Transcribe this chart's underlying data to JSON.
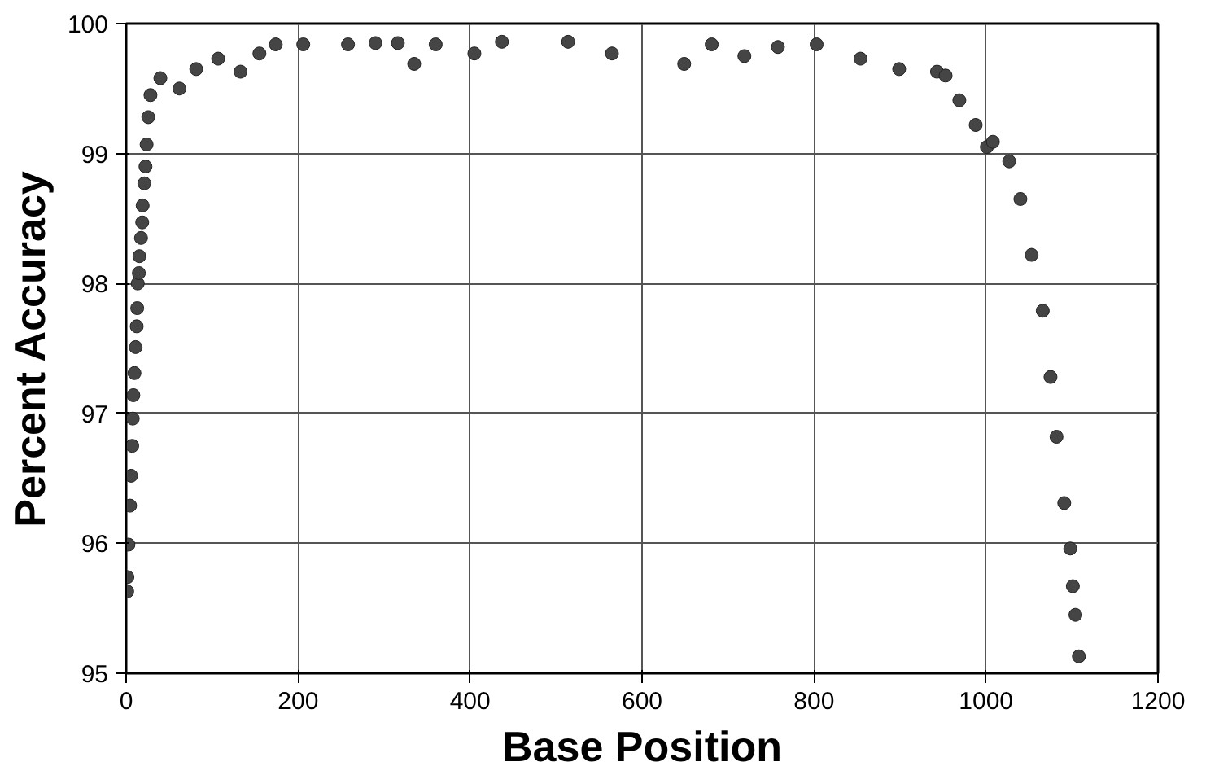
{
  "chart_data": {
    "type": "scatter",
    "xlabel": "Base Position",
    "ylabel": "Percent Accuracy",
    "marker": "circle",
    "grid": true,
    "xlim": [
      0,
      1200
    ],
    "xticks": [
      0,
      200,
      400,
      600,
      800,
      1000,
      1200
    ],
    "ylim": [
      95,
      100
    ],
    "yticks": [
      95,
      96,
      97,
      98,
      99,
      100
    ],
    "series": [
      {
        "color": "#454545",
        "x": [
          1.3,
          1.5,
          2.7,
          4.6,
          5.8,
          7.1,
          7.7,
          8.4,
          9.7,
          11,
          12.3,
          12.9,
          13.5,
          14.8,
          15.4,
          17.3,
          18.7,
          19.2,
          21.2,
          22.5,
          23.8,
          25.8,
          28.3,
          39.8,
          62,
          81.5,
          107,
          133,
          155,
          174,
          206,
          258,
          290,
          316,
          335,
          360,
          405,
          437,
          514,
          565,
          649,
          681,
          719,
          758,
          803,
          854,
          899,
          943,
          953,
          969,
          988,
          1001,
          1008,
          1027,
          1040,
          1053,
          1066,
          1075,
          1082,
          1091,
          1098,
          1101,
          1104,
          1108
        ],
        "values": [
          95.63,
          95.74,
          95.99,
          96.29,
          96.52,
          96.75,
          96.96,
          97.14,
          97.31,
          97.51,
          97.67,
          97.81,
          98.0,
          98.08,
          98.21,
          98.35,
          98.47,
          98.6,
          98.77,
          98.9,
          99.07,
          99.28,
          99.45,
          99.58,
          99.5,
          99.65,
          99.73,
          99.63,
          99.77,
          99.84,
          99.84,
          99.84,
          99.85,
          99.85,
          99.69,
          99.84,
          99.77,
          99.86,
          99.86,
          99.77,
          99.69,
          99.84,
          99.75,
          99.82,
          99.84,
          99.73,
          99.65,
          99.63,
          99.6,
          99.41,
          99.22,
          99.05,
          99.09,
          98.94,
          98.65,
          98.22,
          97.79,
          97.28,
          96.82,
          96.31,
          95.96,
          95.67,
          95.45,
          95.13
        ]
      }
    ]
  }
}
